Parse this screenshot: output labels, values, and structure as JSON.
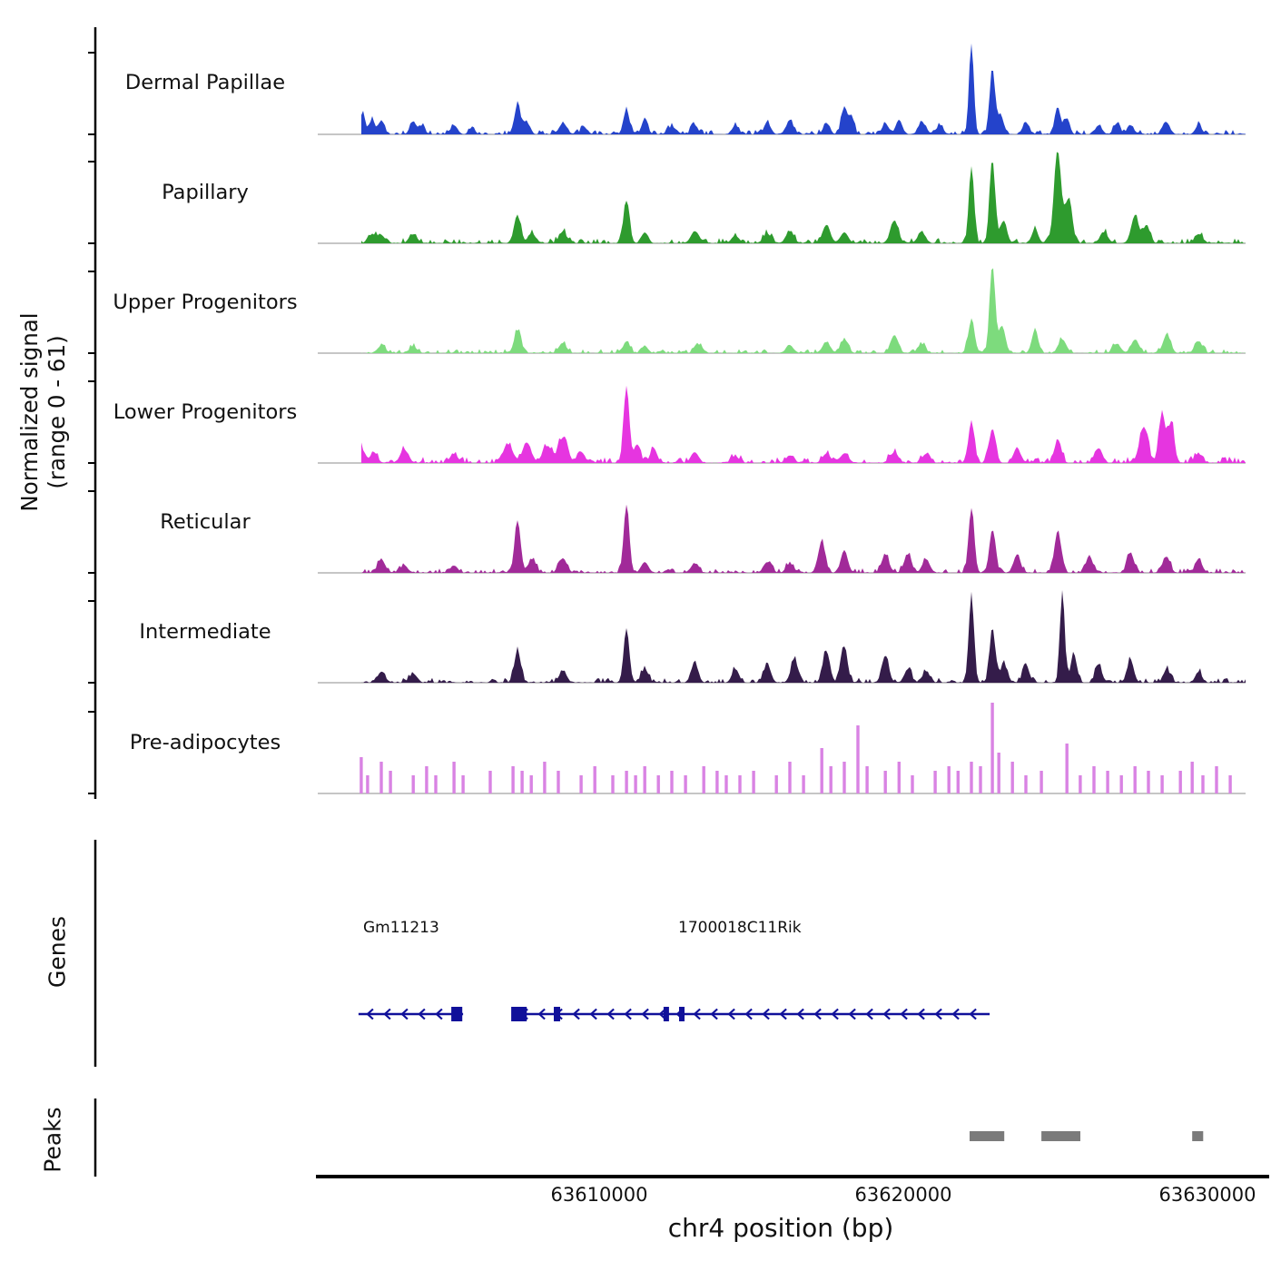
{
  "figure": {
    "y_axis_label_line1": "Normalized signal",
    "y_axis_label_line2": "(range 0 - 61)",
    "genes_section_label": "Genes",
    "peaks_section_label": "Peaks",
    "x_axis_title": "chr4 position (bp)"
  },
  "chart_data": {
    "type": "area",
    "title": "",
    "x_axis": {
      "label": "chr4 position (bp)",
      "chromosome": "chr4",
      "range": [
        63600750,
        63632030
      ],
      "ticks": [
        63610000,
        63620000,
        63630000
      ],
      "tick_labels": [
        "63610000",
        "63620000",
        "63630000"
      ]
    },
    "y_axis": {
      "label": "Normalized signal",
      "range": [
        0,
        61
      ]
    },
    "gene_color": "#10109a",
    "peak_color": "#7b7b7b",
    "baseline_color": "#8c8c8c",
    "tracks": [
      {
        "name": "Dermal Papillae",
        "color": "#2443cb",
        "style": "area",
        "noise": 0.05,
        "peaks": [
          [
            63602240,
            0.22,
            120
          ],
          [
            63602540,
            0.18,
            100
          ],
          [
            63602840,
            0.15,
            140
          ],
          [
            63603890,
            0.14,
            150
          ],
          [
            63604200,
            0.08,
            120
          ],
          [
            63605230,
            0.1,
            150
          ],
          [
            63605830,
            0.08,
            120
          ],
          [
            63607320,
            0.33,
            140
          ],
          [
            63607620,
            0.12,
            150
          ],
          [
            63608810,
            0.12,
            180
          ],
          [
            63609500,
            0.08,
            150
          ],
          [
            63610900,
            0.27,
            140
          ],
          [
            63611500,
            0.16,
            140
          ],
          [
            63612400,
            0.08,
            200
          ],
          [
            63613140,
            0.1,
            150
          ],
          [
            63614480,
            0.1,
            150
          ],
          [
            63615530,
            0.13,
            150
          ],
          [
            63616270,
            0.14,
            180
          ],
          [
            63617470,
            0.1,
            150
          ],
          [
            63618060,
            0.3,
            140
          ],
          [
            63618300,
            0.2,
            120
          ],
          [
            63619410,
            0.12,
            150
          ],
          [
            63619860,
            0.16,
            150
          ],
          [
            63620600,
            0.13,
            150
          ],
          [
            63621200,
            0.1,
            150
          ],
          [
            63622240,
            1.0,
            110
          ],
          [
            63622930,
            0.72,
            120
          ],
          [
            63623200,
            0.2,
            150
          ],
          [
            63624030,
            0.13,
            150
          ],
          [
            63625080,
            0.3,
            130
          ],
          [
            63625380,
            0.18,
            130
          ],
          [
            63626420,
            0.1,
            150
          ],
          [
            63627020,
            0.12,
            150
          ],
          [
            63627470,
            0.1,
            150
          ],
          [
            63628660,
            0.13,
            150
          ],
          [
            63629710,
            0.1,
            150
          ]
        ]
      },
      {
        "name": "Papillary",
        "color": "#2e9b2e",
        "style": "area",
        "noise": 0.06,
        "peaks": [
          [
            63602540,
            0.1,
            180
          ],
          [
            63602840,
            0.09,
            150
          ],
          [
            63603890,
            0.1,
            180
          ],
          [
            63607320,
            0.3,
            150
          ],
          [
            63607800,
            0.1,
            180
          ],
          [
            63608810,
            0.12,
            180
          ],
          [
            63610900,
            0.47,
            140
          ],
          [
            63611500,
            0.12,
            150
          ],
          [
            63613140,
            0.13,
            180
          ],
          [
            63614480,
            0.08,
            180
          ],
          [
            63615530,
            0.1,
            180
          ],
          [
            63616270,
            0.13,
            180
          ],
          [
            63617470,
            0.2,
            180
          ],
          [
            63618060,
            0.12,
            180
          ],
          [
            63619710,
            0.25,
            180
          ],
          [
            63620600,
            0.12,
            180
          ],
          [
            63622240,
            0.85,
            120
          ],
          [
            63622930,
            0.92,
            130
          ],
          [
            63623300,
            0.25,
            150
          ],
          [
            63624330,
            0.15,
            150
          ],
          [
            63625080,
            1.0,
            170
          ],
          [
            63625450,
            0.5,
            150
          ],
          [
            63626600,
            0.12,
            180
          ],
          [
            63627620,
            0.3,
            180
          ],
          [
            63628000,
            0.2,
            150
          ],
          [
            63629710,
            0.1,
            180
          ]
        ]
      },
      {
        "name": "Upper Progenitors",
        "color": "#7ddb7d",
        "style": "area",
        "noise": 0.045,
        "peaks": [
          [
            63602840,
            0.08,
            180
          ],
          [
            63603890,
            0.07,
            180
          ],
          [
            63607320,
            0.25,
            160
          ],
          [
            63608810,
            0.1,
            180
          ],
          [
            63610900,
            0.13,
            150
          ],
          [
            63611500,
            0.08,
            150
          ],
          [
            63613290,
            0.08,
            180
          ],
          [
            63616270,
            0.08,
            180
          ],
          [
            63617470,
            0.12,
            180
          ],
          [
            63618060,
            0.15,
            170
          ],
          [
            63619710,
            0.2,
            170
          ],
          [
            63620600,
            0.1,
            170
          ],
          [
            63622240,
            0.35,
            150
          ],
          [
            63622930,
            0.95,
            130
          ],
          [
            63623250,
            0.3,
            150
          ],
          [
            63624330,
            0.25,
            150
          ],
          [
            63625230,
            0.15,
            180
          ],
          [
            63627020,
            0.1,
            180
          ],
          [
            63627620,
            0.15,
            180
          ],
          [
            63628660,
            0.2,
            170
          ],
          [
            63629710,
            0.13,
            170
          ]
        ]
      },
      {
        "name": "Lower Progenitors",
        "color": "#e635e0",
        "style": "area",
        "noise": 0.07,
        "peaks": [
          [
            63602180,
            0.16,
            180
          ],
          [
            63602600,
            0.12,
            150
          ],
          [
            63603590,
            0.15,
            180
          ],
          [
            63605230,
            0.1,
            170
          ],
          [
            63607000,
            0.2,
            220
          ],
          [
            63607620,
            0.22,
            200
          ],
          [
            63608300,
            0.18,
            220
          ],
          [
            63608810,
            0.28,
            200
          ],
          [
            63609400,
            0.12,
            180
          ],
          [
            63610900,
            0.85,
            130
          ],
          [
            63611250,
            0.2,
            150
          ],
          [
            63611800,
            0.16,
            150
          ],
          [
            63613140,
            0.12,
            170
          ],
          [
            63614480,
            0.07,
            180
          ],
          [
            63616270,
            0.08,
            180
          ],
          [
            63617470,
            0.1,
            180
          ],
          [
            63618060,
            0.1,
            180
          ],
          [
            63619710,
            0.12,
            180
          ],
          [
            63620750,
            0.1,
            180
          ],
          [
            63622240,
            0.45,
            140
          ],
          [
            63622930,
            0.38,
            150
          ],
          [
            63623740,
            0.16,
            170
          ],
          [
            63625080,
            0.25,
            160
          ],
          [
            63626420,
            0.16,
            170
          ],
          [
            63627910,
            0.4,
            190
          ],
          [
            63628510,
            0.55,
            150
          ],
          [
            63628810,
            0.45,
            140
          ],
          [
            63629710,
            0.1,
            170
          ]
        ]
      },
      {
        "name": "Reticular",
        "color": "#a12a99",
        "style": "area",
        "noise": 0.05,
        "peaks": [
          [
            63602840,
            0.15,
            170
          ],
          [
            63603590,
            0.08,
            170
          ],
          [
            63605230,
            0.08,
            170
          ],
          [
            63607320,
            0.58,
            140
          ],
          [
            63607800,
            0.15,
            170
          ],
          [
            63608810,
            0.16,
            180
          ],
          [
            63610900,
            0.75,
            130
          ],
          [
            63611500,
            0.12,
            160
          ],
          [
            63613140,
            0.1,
            170
          ],
          [
            63615530,
            0.12,
            170
          ],
          [
            63616270,
            0.1,
            170
          ],
          [
            63617320,
            0.35,
            160
          ],
          [
            63618060,
            0.25,
            160
          ],
          [
            63619410,
            0.2,
            170
          ],
          [
            63620150,
            0.2,
            170
          ],
          [
            63620750,
            0.15,
            170
          ],
          [
            63622240,
            0.7,
            130
          ],
          [
            63622930,
            0.48,
            140
          ],
          [
            63623740,
            0.2,
            160
          ],
          [
            63625080,
            0.45,
            150
          ],
          [
            63626120,
            0.18,
            160
          ],
          [
            63627470,
            0.22,
            160
          ],
          [
            63628660,
            0.18,
            160
          ],
          [
            63629710,
            0.15,
            160
          ]
        ]
      },
      {
        "name": "Intermediate",
        "color": "#341c4a",
        "style": "area",
        "noise": 0.055,
        "peaks": [
          [
            63602840,
            0.12,
            170
          ],
          [
            63603890,
            0.1,
            170
          ],
          [
            63607320,
            0.35,
            150
          ],
          [
            63608810,
            0.13,
            170
          ],
          [
            63610900,
            0.6,
            130
          ],
          [
            63611500,
            0.15,
            160
          ],
          [
            63613140,
            0.22,
            160
          ],
          [
            63614480,
            0.15,
            160
          ],
          [
            63615530,
            0.2,
            160
          ],
          [
            63616420,
            0.26,
            160
          ],
          [
            63617470,
            0.35,
            160
          ],
          [
            63618060,
            0.4,
            150
          ],
          [
            63619410,
            0.3,
            160
          ],
          [
            63620150,
            0.15,
            160
          ],
          [
            63620750,
            0.12,
            160
          ],
          [
            63622240,
            0.95,
            120
          ],
          [
            63622930,
            0.6,
            130
          ],
          [
            63623300,
            0.2,
            150
          ],
          [
            63624030,
            0.2,
            150
          ],
          [
            63625230,
            1.0,
            110
          ],
          [
            63625600,
            0.3,
            140
          ],
          [
            63626420,
            0.2,
            150
          ],
          [
            63627470,
            0.25,
            150
          ],
          [
            63628660,
            0.15,
            150
          ],
          [
            63629710,
            0.12,
            150
          ]
        ]
      },
      {
        "name": "Pre-adipocytes",
        "color": "#d983e3",
        "style": "bars",
        "noise": 0,
        "bars": [
          [
            63602180,
            0.4
          ],
          [
            63602390,
            0.2
          ],
          [
            63602840,
            0.35
          ],
          [
            63603140,
            0.25
          ],
          [
            63603890,
            0.2
          ],
          [
            63604330,
            0.3
          ],
          [
            63604630,
            0.2
          ],
          [
            63605230,
            0.35
          ],
          [
            63605530,
            0.2
          ],
          [
            63606420,
            0.25
          ],
          [
            63607170,
            0.3
          ],
          [
            63607470,
            0.25
          ],
          [
            63607770,
            0.2
          ],
          [
            63608210,
            0.35
          ],
          [
            63608660,
            0.25
          ],
          [
            63609410,
            0.2
          ],
          [
            63609860,
            0.3
          ],
          [
            63610450,
            0.2
          ],
          [
            63610900,
            0.25
          ],
          [
            63611200,
            0.2
          ],
          [
            63611500,
            0.3
          ],
          [
            63611950,
            0.2
          ],
          [
            63612390,
            0.25
          ],
          [
            63612840,
            0.2
          ],
          [
            63613440,
            0.3
          ],
          [
            63613880,
            0.25
          ],
          [
            63614180,
            0.2
          ],
          [
            63614630,
            0.2
          ],
          [
            63615080,
            0.25
          ],
          [
            63615830,
            0.2
          ],
          [
            63616270,
            0.35
          ],
          [
            63616720,
            0.2
          ],
          [
            63617320,
            0.5
          ],
          [
            63617620,
            0.3
          ],
          [
            63618060,
            0.35
          ],
          [
            63618510,
            0.75
          ],
          [
            63618810,
            0.3
          ],
          [
            63619410,
            0.25
          ],
          [
            63619860,
            0.35
          ],
          [
            63620300,
            0.2
          ],
          [
            63621050,
            0.25
          ],
          [
            63621500,
            0.3
          ],
          [
            63621800,
            0.25
          ],
          [
            63622240,
            0.35
          ],
          [
            63622540,
            0.3
          ],
          [
            63622930,
            1.0
          ],
          [
            63623140,
            0.45
          ],
          [
            63623590,
            0.35
          ],
          [
            63624030,
            0.2
          ],
          [
            63624540,
            0.25
          ],
          [
            63625380,
            0.55
          ],
          [
            63625820,
            0.2
          ],
          [
            63626270,
            0.3
          ],
          [
            63626720,
            0.25
          ],
          [
            63627170,
            0.2
          ],
          [
            63627620,
            0.3
          ],
          [
            63628060,
            0.25
          ],
          [
            63628510,
            0.2
          ],
          [
            63629110,
            0.25
          ],
          [
            63629500,
            0.35
          ],
          [
            63629850,
            0.2
          ],
          [
            63630300,
            0.3
          ],
          [
            63630750,
            0.2
          ]
        ]
      }
    ],
    "genes": [
      {
        "name": "Gm11213",
        "strand": "-",
        "start": 63602090,
        "end": 63605530,
        "exons": [
          [
            63605140,
            63605500
          ]
        ]
      },
      {
        "name": "1700018C11Rik",
        "strand": "-",
        "start": 63607170,
        "end": 63622840,
        "exons": [
          [
            63607110,
            63607620
          ],
          [
            63608510,
            63608720
          ],
          [
            63612120,
            63612300
          ],
          [
            63612630,
            63612810
          ]
        ]
      }
    ],
    "peak_regions": [
      [
        63622180,
        63623320
      ],
      [
        63624540,
        63625820
      ],
      [
        63629500,
        63629860
      ]
    ]
  }
}
